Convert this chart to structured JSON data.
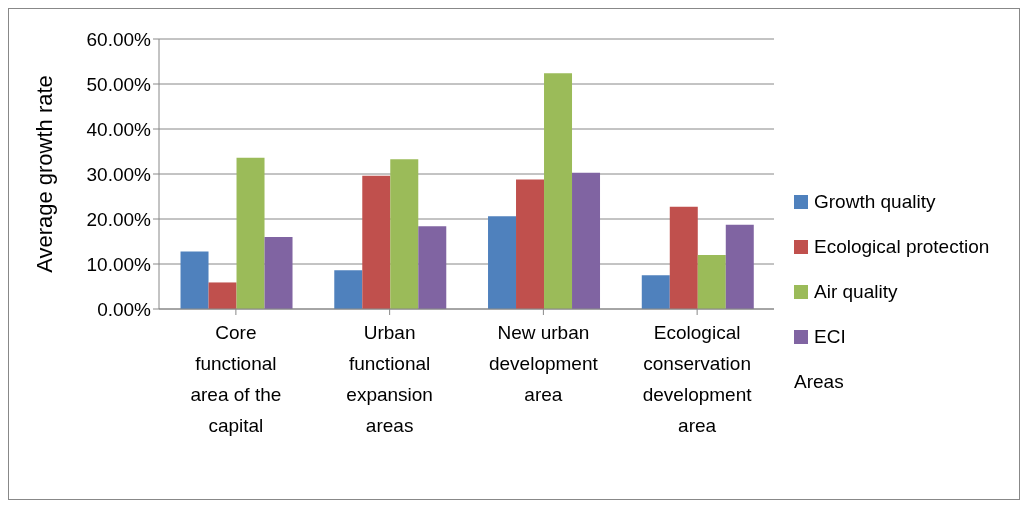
{
  "chart_data": {
    "type": "bar",
    "ylabel": "Average growth rate",
    "xlabel": "Areas",
    "categories": [
      "Core functional area of the capital",
      "Urban functional expansion areas",
      "New urban development area",
      "Ecological conservation development area"
    ],
    "series": [
      {
        "name": "Growth quality",
        "color": "#4f81bd",
        "values": [
          12.8,
          8.6,
          20.6,
          7.5
        ]
      },
      {
        "name": "Ecological protection",
        "color": "#c0504d",
        "values": [
          5.9,
          29.6,
          28.8,
          22.7
        ]
      },
      {
        "name": "Air quality",
        "color": "#9bbb59",
        "values": [
          33.6,
          33.3,
          52.4,
          12.0
        ]
      },
      {
        "name": "ECI",
        "color": "#8064a2",
        "values": [
          16.0,
          18.4,
          30.3,
          18.7
        ]
      }
    ],
    "ylim": [
      0,
      60
    ],
    "yticks": [
      {
        "value": 0,
        "label": "0.00%"
      },
      {
        "value": 10,
        "label": "10.00%"
      },
      {
        "value": 20,
        "label": "20.00%"
      },
      {
        "value": 30,
        "label": "30.00%"
      },
      {
        "value": 40,
        "label": "40.00%"
      },
      {
        "value": 50,
        "label": "50.00%"
      },
      {
        "value": 60,
        "label": "60.00%"
      }
    ],
    "grid": "y",
    "legend": "right"
  }
}
